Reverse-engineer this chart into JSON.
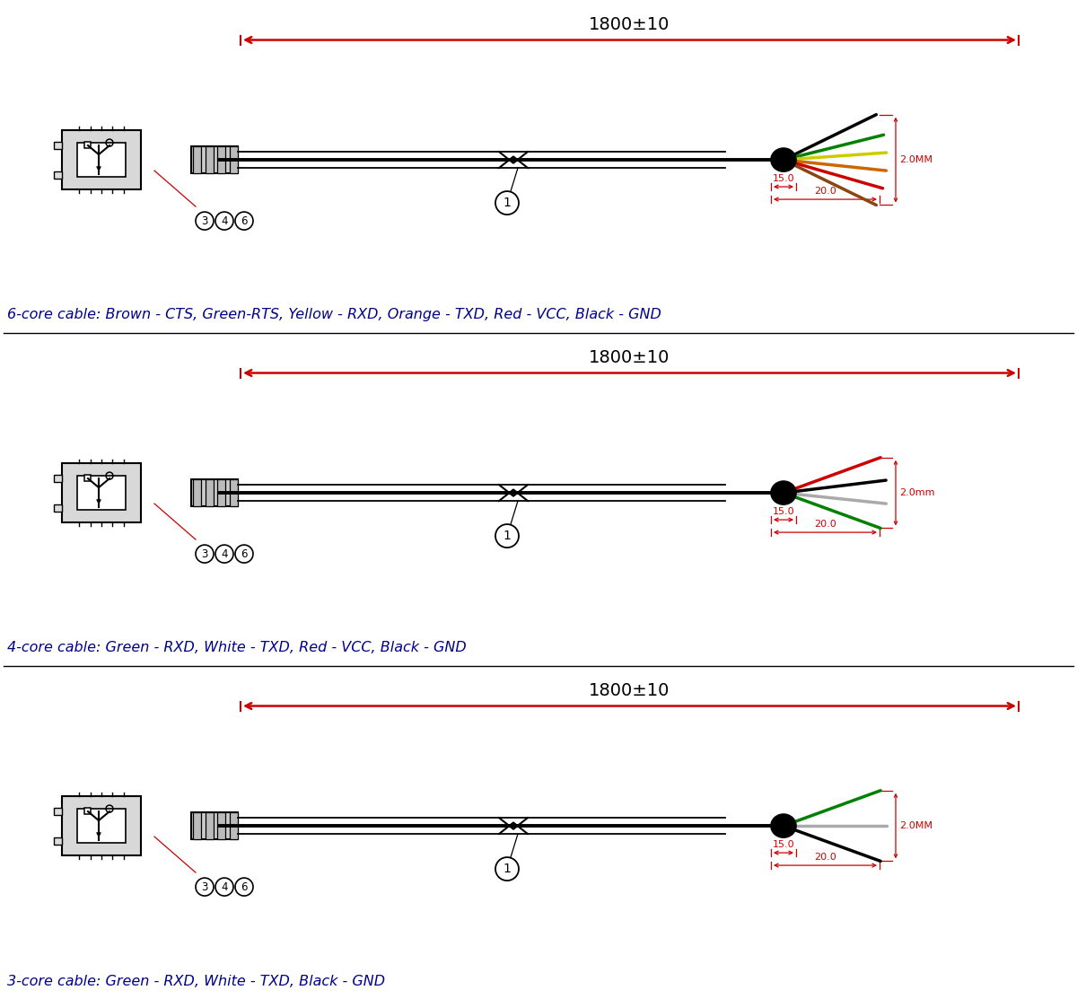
{
  "bg_color": "#ffffff",
  "red": "#cc0000",
  "blue": "#00008B",
  "sep_color": "#000000",
  "panels": [
    {
      "caption": "6-core cable: Brown - CTS, Green-RTS, Yellow - RXD, Orange - TXD, Red - VCC, Black - GND",
      "wire_colors": [
        "#000000",
        "#008000",
        "#cccc00",
        "#cc6600",
        "#cc0000",
        "#8B4513"
      ],
      "wire_angles": [
        26,
        14,
        4,
        -6,
        -16,
        -26
      ],
      "dim_suffix": "MM"
    },
    {
      "caption": "4-core cable: Green - RXD, White - TXD, Red - VCC, Black - GND",
      "wire_colors": [
        "#cc0000",
        "#000000",
        "#aaaaaa",
        "#008000"
      ],
      "wire_angles": [
        20,
        7,
        -6,
        -20
      ],
      "dim_suffix": "mm"
    },
    {
      "caption": "3-core cable: Green - RXD, White - TXD, Black - GND",
      "wire_colors": [
        "#008000",
        "#aaaaaa",
        "#000000"
      ],
      "wire_angles": [
        20,
        0,
        -20
      ],
      "dim_suffix": "MM"
    }
  ]
}
